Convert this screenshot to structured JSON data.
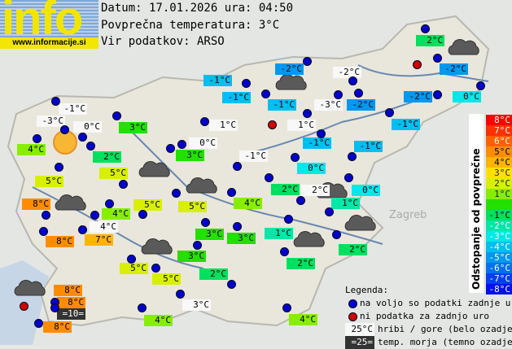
{
  "header": {
    "logo_text": "info",
    "logo_url": "www.informacije.si",
    "date_line": "Datum: 17.01.2026 ura: 04:50",
    "avg_line": "Povprečna temperatura: 3°C",
    "source_line": "Vir podatkov: ARSO"
  },
  "average_temperature": 3,
  "stations": [
    {
      "t": "-1°C",
      "k": "hill"
    },
    {
      "t": "-3°C",
      "k": "hill"
    },
    {
      "t": "0°C",
      "k": "hill"
    },
    {
      "t": "3°C",
      "k": "n"
    },
    {
      "t": "4°C",
      "k": "n"
    },
    {
      "t": "2°C",
      "k": "n"
    },
    {
      "t": "5°C",
      "k": "n"
    },
    {
      "t": "5°C",
      "k": "n"
    },
    {
      "t": "8°C",
      "k": "n"
    },
    {
      "t": "4°C",
      "k": "n"
    },
    {
      "t": "5°C",
      "k": "n"
    },
    {
      "t": "5°C",
      "k": "n"
    },
    {
      "t": "4°C",
      "k": "hill"
    },
    {
      "t": "8°C",
      "k": "n"
    },
    {
      "t": "7°C",
      "k": "n"
    },
    {
      "t": "1°C",
      "k": "hill"
    },
    {
      "t": "0°C",
      "k": "hill"
    },
    {
      "t": "3°C",
      "k": "n"
    },
    {
      "t": "-1°C",
      "k": "hill"
    },
    {
      "t": "-1°C",
      "k": "n"
    },
    {
      "t": "4°C",
      "k": "n"
    },
    {
      "t": "3°C",
      "k": "n"
    },
    {
      "t": "3°C",
      "k": "n"
    },
    {
      "t": "3°C",
      "k": "n"
    },
    {
      "t": "5°C",
      "k": "n"
    },
    {
      "t": "5°C",
      "k": "n"
    },
    {
      "t": "2°C",
      "k": "n"
    },
    {
      "t": "8°C",
      "k": "n"
    },
    {
      "t": "8°C",
      "k": "n"
    },
    {
      "t": "=10=",
      "k": "sea"
    },
    {
      "t": "8°C",
      "k": "n"
    },
    {
      "t": "4°C",
      "k": "n"
    },
    {
      "t": "3°C",
      "k": "hill"
    },
    {
      "t": "4°C",
      "k": "n"
    },
    {
      "t": "2°C",
      "k": "n"
    },
    {
      "t": "2°C",
      "k": "hill"
    },
    {
      "t": "0°C",
      "k": "n"
    },
    {
      "t": "1°C",
      "k": "n"
    },
    {
      "t": "1°C",
      "k": "n"
    },
    {
      "t": "2°C",
      "k": "n"
    },
    {
      "t": "2°C",
      "k": "n"
    },
    {
      "t": "2°C",
      "k": "n"
    },
    {
      "t": "-2°C",
      "k": "n"
    },
    {
      "t": "-2°C",
      "k": "hill"
    },
    {
      "t": "-2°C",
      "k": "n"
    },
    {
      "t": "-1°C",
      "k": "n"
    },
    {
      "t": "-1°C",
      "k": "n"
    },
    {
      "t": "-3°C",
      "k": "hill"
    },
    {
      "t": "-2°C",
      "k": "n"
    },
    {
      "t": "-2°C",
      "k": "n"
    },
    {
      "t": "0°C",
      "k": "n"
    },
    {
      "t": "1°C",
      "k": "hill"
    },
    {
      "t": "-1°C",
      "k": "n"
    },
    {
      "t": "-1°C",
      "k": "n"
    },
    {
      "t": "-1°C",
      "k": "n"
    },
    {
      "t": "0°C",
      "k": "n"
    }
  ],
  "scale": {
    "title": "Odstopanje od povprečne temperature:",
    "rows": [
      "8°C",
      "7°C",
      "6°C",
      "5°C",
      "4°C",
      "3°C",
      "2°C",
      "1°C",
      "",
      "-1°C",
      "-2°C",
      "-3°C",
      "-4°C",
      "-5°C",
      "-6°C",
      "-7°C",
      "-8°C"
    ],
    "colors": [
      "#ff0000",
      "#ff3000",
      "#ff6000",
      "#ff8c00",
      "#ffb400",
      "#ffe000",
      "#d8f000",
      "#88ee00",
      "#22e000",
      "#00e060",
      "#00e8a8",
      "#00e8e8",
      "#00bff0",
      "#0098f0",
      "#0070f0",
      "#0040f0",
      "#0010f0"
    ]
  },
  "legend": {
    "title": "Legenda:",
    "available": "na voljo so podatki zadnje ure",
    "unavailable": "ni podatka za zadnjo uro",
    "hill_sample": "25°C",
    "hill_text": "hribi / gore (belo ozadje)",
    "sea_sample": "=25=",
    "sea_text": "temp. morja (temno ozadje)"
  },
  "colors": {
    "dot_available": "#0000cc",
    "dot_unavailable": "#d00000",
    "sea_label": "#333333",
    "hill_label": "#f8f8f8"
  }
}
